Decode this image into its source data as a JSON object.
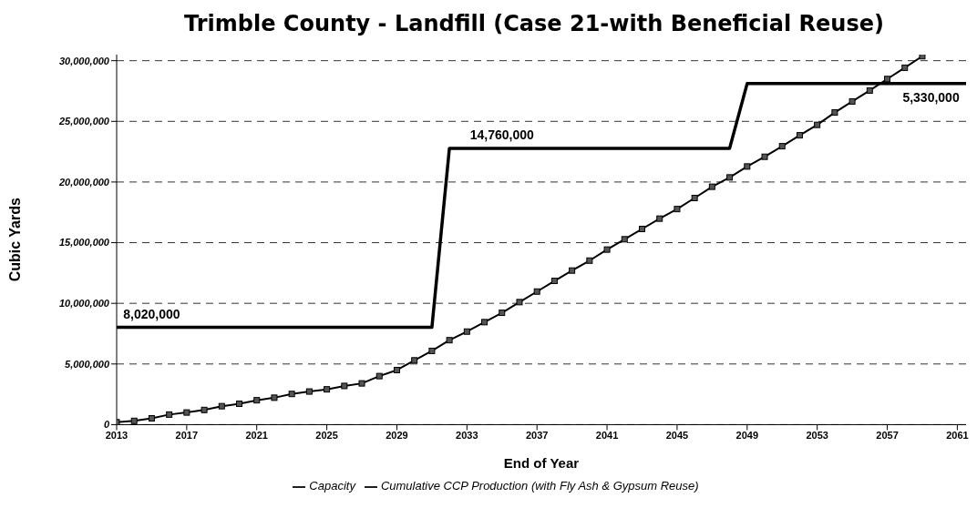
{
  "chart_data": {
    "type": "line",
    "title": "Trimble County - Landfill (Case 21-with Beneficial Reuse)",
    "xlabel": "End of Year",
    "ylabel": "Cubic Yards",
    "xlim": [
      2013,
      2061.5
    ],
    "xticks": [
      2013,
      2017,
      2021,
      2025,
      2029,
      2033,
      2037,
      2041,
      2045,
      2049,
      2053,
      2057,
      2061
    ],
    "ylim": [
      0,
      30500000
    ],
    "yticks": [
      {
        "value": 0,
        "label": "0"
      },
      {
        "value": 5000000,
        "label": "5,000,000"
      },
      {
        "value": 10000000,
        "label": "10,000,000"
      },
      {
        "value": 15000000,
        "label": "15,000,000"
      },
      {
        "value": 20000000,
        "label": "20,000,000"
      },
      {
        "value": 25000000,
        "label": "25,000,000"
      },
      {
        "value": 30000000,
        "label": "30,000,000"
      }
    ],
    "grid": "y",
    "legend": "bottom",
    "series": [
      {
        "name": "Capacity",
        "color": "#000000",
        "marker": "none",
        "x": [
          2013,
          2031,
          2032,
          2048,
          2049,
          2061.5
        ],
        "values": [
          8020000,
          8020000,
          22780000,
          22780000,
          28110000,
          28110000
        ]
      },
      {
        "name": "Cumulative CCP Production (with Fly Ash & Gypsum Reuse)",
        "color": "#000000",
        "marker": "square",
        "x": [
          2013,
          2014,
          2015,
          2016,
          2017,
          2018,
          2019,
          2020,
          2021,
          2022,
          2023,
          2024,
          2025,
          2026,
          2027,
          2028,
          2029,
          2030,
          2031,
          2032,
          2033,
          2034,
          2035,
          2036,
          2037,
          2038,
          2039,
          2040,
          2041,
          2042,
          2043,
          2044,
          2045,
          2046,
          2047,
          2048,
          2049,
          2050,
          2051,
          2052,
          2053,
          2054,
          2055,
          2056,
          2057,
          2058,
          2059
        ],
        "values": [
          200000,
          310000,
          520000,
          830000,
          1000000,
          1210000,
          1520000,
          1720000,
          2010000,
          2220000,
          2530000,
          2730000,
          2910000,
          3190000,
          3400000,
          4000000,
          4500000,
          5300000,
          6080000,
          6960000,
          7670000,
          8450000,
          9220000,
          10100000,
          10970000,
          11850000,
          12700000,
          13520000,
          14430000,
          15280000,
          16130000,
          16980000,
          17770000,
          18680000,
          19610000,
          20380000,
          21280000,
          22080000,
          22950000,
          23850000,
          24710000,
          25730000,
          26640000,
          27540000,
          28490000,
          29420000,
          30370000
        ]
      }
    ],
    "annotations": [
      {
        "text": "8,020,000",
        "x": 2015,
        "y": 8020000
      },
      {
        "text": "14,760,000",
        "x": 2035,
        "y": 22780000
      },
      {
        "text": "5,330,000",
        "x": 2059.5,
        "y": 28110000
      }
    ]
  }
}
